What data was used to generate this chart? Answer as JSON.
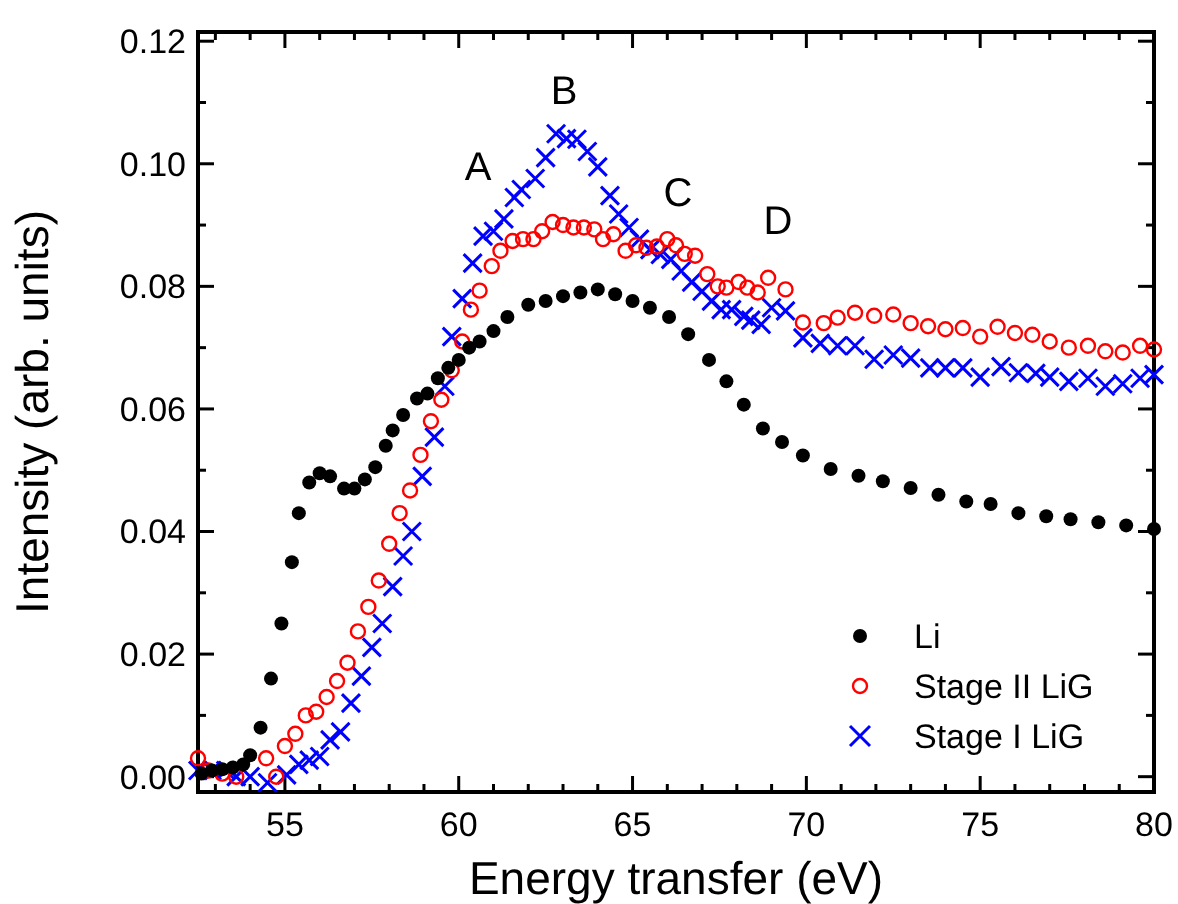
{
  "chart_data": {
    "type": "scatter",
    "xlabel": "Energy transfer (eV)",
    "ylabel": "Intensity (arb. units)",
    "xlim": [
      52.5,
      80
    ],
    "ylim": [
      -0.0025,
      0.1215
    ],
    "xticks": [
      {
        "value": 53,
        "label": null
      },
      {
        "value": 54,
        "label": null
      },
      55,
      {
        "value": 56,
        "label": null
      },
      {
        "value": 57,
        "label": null
      },
      {
        "value": 58,
        "label": null
      },
      {
        "value": 59,
        "label": null
      },
      60,
      {
        "value": 61,
        "label": null
      },
      {
        "value": 62,
        "label": null
      },
      {
        "value": 63,
        "label": null
      },
      {
        "value": 64,
        "label": null
      },
      65,
      {
        "value": 66,
        "label": null
      },
      {
        "value": 67,
        "label": null
      },
      {
        "value": 68,
        "label": null
      },
      {
        "value": 69,
        "label": null
      },
      70,
      {
        "value": 71,
        "label": null
      },
      {
        "value": 72,
        "label": null
      },
      {
        "value": 73,
        "label": null
      },
      {
        "value": 74,
        "label": null
      },
      75,
      {
        "value": 76,
        "label": null
      },
      {
        "value": 77,
        "label": null
      },
      {
        "value": 78,
        "label": null
      },
      {
        "value": 79,
        "label": null
      },
      80
    ],
    "yticks": [
      {
        "value": 0,
        "label": "0.00"
      },
      {
        "value": 0.01,
        "label": null
      },
      {
        "value": 0.02,
        "label": "0.02"
      },
      {
        "value": 0.03,
        "label": null
      },
      {
        "value": 0.04,
        "label": "0.04"
      },
      {
        "value": 0.05,
        "label": null
      },
      {
        "value": 0.06,
        "label": "0.06"
      },
      {
        "value": 0.07,
        "label": null
      },
      {
        "value": 0.08,
        "label": "0.08"
      },
      {
        "value": 0.09,
        "label": null
      },
      {
        "value": 0.1,
        "label": "0.10"
      },
      {
        "value": 0.11,
        "label": null
      },
      {
        "value": 0.12,
        "label": "0.12"
      }
    ],
    "grid": false,
    "legend": "bottom right",
    "annotations": [
      "A",
      "B",
      "C",
      "D"
    ],
    "series": [
      {
        "name": "Li",
        "color": "#000000",
        "marker": "circle",
        "x": [
          52.6,
          52.9,
          53.2,
          53.5,
          53.8,
          54.0,
          54.3,
          54.6,
          54.9,
          55.2,
          55.4,
          55.7,
          56.0,
          56.3,
          56.7,
          57.0,
          57.3,
          57.6,
          57.9,
          58.1,
          58.4,
          58.8,
          59.1,
          59.4,
          59.7,
          60.0,
          60.3,
          60.6,
          61.0,
          61.4,
          62.0,
          62.5,
          63.0,
          63.5,
          64.0,
          64.5,
          65.0,
          65.5,
          66.05,
          66.6,
          67.2,
          67.7,
          68.2,
          68.75,
          69.3,
          69.9,
          70.7,
          71.5,
          72.2,
          73.0,
          73.8,
          74.6,
          75.3,
          76.1,
          76.9,
          77.6,
          78.4,
          79.2,
          80.0
        ],
        "values": [
          0.0005,
          0.001,
          0.0012,
          0.0015,
          0.002,
          0.0035,
          0.008,
          0.016,
          0.025,
          0.035,
          0.043,
          0.048,
          0.0495,
          0.049,
          0.047,
          0.047,
          0.0485,
          0.0505,
          0.054,
          0.0565,
          0.059,
          0.0617,
          0.0625,
          0.065,
          0.0667,
          0.068,
          0.07,
          0.071,
          0.0727,
          0.075,
          0.077,
          0.0776,
          0.0784,
          0.079,
          0.0795,
          0.0787,
          0.0776,
          0.0765,
          0.075,
          0.0722,
          0.068,
          0.0645,
          0.0607,
          0.0568,
          0.0546,
          0.0524,
          0.0502,
          0.0491,
          0.0482,
          0.0471,
          0.046,
          0.0449,
          0.0445,
          0.043,
          0.0425,
          0.042,
          0.0415,
          0.041,
          0.0404
        ]
      },
      {
        "name": "Stage II LiG",
        "color": "#ff0000",
        "marker": "circle",
        "x": [
          52.5,
          52.8,
          53.2,
          53.6,
          54.46,
          54.75,
          55.0,
          55.3,
          55.6,
          55.9,
          56.2,
          56.5,
          56.8,
          57.1,
          57.4,
          57.7,
          58.0,
          58.3,
          58.6,
          58.9,
          59.2,
          59.5,
          59.8,
          60.1,
          60.35,
          60.6,
          60.95,
          61.2,
          61.55,
          61.85,
          62.15,
          62.4,
          62.7,
          63.0,
          63.3,
          63.6,
          63.9,
          64.15,
          64.45,
          64.8,
          65.1,
          65.4,
          65.7,
          66.0,
          66.25,
          66.5,
          66.8,
          67.15,
          67.45,
          67.7,
          68.05,
          68.3,
          68.6,
          68.9,
          69.4,
          69.9,
          70.5,
          70.9,
          71.4,
          71.95,
          72.5,
          73.0,
          73.5,
          74.0,
          74.5,
          75.0,
          75.5,
          76.0,
          76.5,
          77.0,
          77.55,
          78.1,
          78.6,
          79.1,
          79.6,
          80.0
        ],
        "values": [
          0.003,
          0.001,
          0.0005,
          0.0,
          0.003,
          0.0,
          0.005,
          0.007,
          0.01,
          0.0106,
          0.013,
          0.0156,
          0.0186,
          0.0237,
          0.0277,
          0.032,
          0.038,
          0.043,
          0.0467,
          0.0525,
          0.058,
          0.0615,
          0.0663,
          0.071,
          0.0762,
          0.0793,
          0.0833,
          0.0858,
          0.0874,
          0.0877,
          0.0877,
          0.089,
          0.0905,
          0.09,
          0.0896,
          0.0896,
          0.0893,
          0.0877,
          0.0885,
          0.0858,
          0.0867,
          0.0863,
          0.0865,
          0.0877,
          0.0867,
          0.0853,
          0.085,
          0.082,
          0.08,
          0.0798,
          0.0807,
          0.0798,
          0.079,
          0.0814,
          0.0795,
          0.0741,
          0.074,
          0.0749,
          0.0757,
          0.0752,
          0.0754,
          0.074,
          0.0735,
          0.073,
          0.0732,
          0.0718,
          0.0734,
          0.0724,
          0.0721,
          0.071,
          0.07,
          0.0703,
          0.0694,
          0.0692,
          0.0703,
          0.0697
        ]
      },
      {
        "name": "Stage I LiG",
        "color": "#0000ff",
        "marker": "cross",
        "x": [
          52.5,
          52.9,
          53.3,
          53.6,
          54.0,
          54.5,
          55.05,
          55.4,
          55.7,
          56.0,
          56.3,
          56.6,
          56.9,
          57.2,
          57.5,
          57.8,
          58.1,
          58.4,
          58.65,
          58.95,
          59.3,
          59.6,
          59.8,
          60.1,
          60.4,
          60.7,
          61.0,
          61.3,
          61.6,
          61.8,
          62.2,
          62.5,
          62.8,
          63.1,
          63.4,
          63.7,
          64.0,
          64.35,
          64.6,
          64.9,
          65.2,
          65.5,
          65.8,
          66.1,
          66.4,
          66.7,
          67.0,
          67.27,
          67.55,
          67.85,
          68.2,
          68.4,
          68.7,
          69.0,
          69.4,
          69.9,
          70.4,
          70.9,
          71.4,
          71.95,
          72.5,
          73.0,
          73.55,
          74.0,
          74.5,
          75.0,
          75.6,
          76.1,
          76.6,
          77.0,
          77.55,
          78.1,
          78.6,
          79.1,
          79.6,
          80.0
        ],
        "values": [
          0.001,
          0.001,
          0.001,
          0.0,
          0.0,
          -0.001,
          0.0003,
          0.002,
          0.0027,
          0.0033,
          0.006,
          0.0073,
          0.012,
          0.0164,
          0.0211,
          0.025,
          0.031,
          0.036,
          0.04,
          0.049,
          0.0554,
          0.0637,
          0.0718,
          0.078,
          0.0838,
          0.0882,
          0.089,
          0.091,
          0.0945,
          0.0958,
          0.0976,
          0.101,
          0.1049,
          0.1041,
          0.104,
          0.102,
          0.0995,
          0.0948,
          0.0918,
          0.0896,
          0.0877,
          0.086,
          0.0852,
          0.0844,
          0.0825,
          0.0807,
          0.0792,
          0.0776,
          0.0762,
          0.0762,
          0.0751,
          0.0745,
          0.0738,
          0.0765,
          0.076,
          0.0716,
          0.0707,
          0.0703,
          0.0703,
          0.0681,
          0.0688,
          0.0683,
          0.0667,
          0.0667,
          0.0667,
          0.0652,
          0.0669,
          0.0659,
          0.0658,
          0.0652,
          0.0645,
          0.065,
          0.0637,
          0.0641,
          0.065,
          0.0656
        ]
      }
    ]
  }
}
